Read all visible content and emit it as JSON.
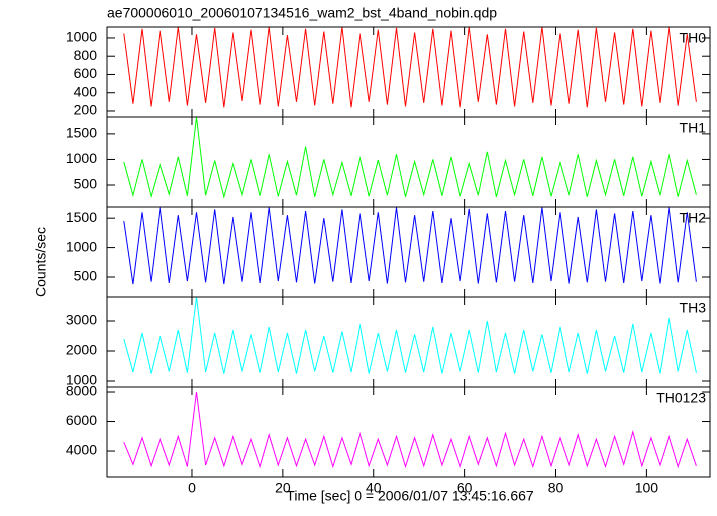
{
  "chart_data": [
    {
      "type": "line",
      "title": "ae700006010_20060107134516_wam2_bst_4band_nobin.qdp",
      "x": [
        -15,
        -13,
        -11,
        -9,
        -7,
        -5,
        -3,
        -1,
        1,
        3,
        5,
        7,
        9,
        11,
        13,
        15,
        17,
        19,
        21,
        23,
        25,
        27,
        29,
        31,
        33,
        35,
        37,
        39,
        41,
        43,
        45,
        47,
        49,
        51,
        53,
        55,
        57,
        59,
        61,
        63,
        65,
        67,
        69,
        71,
        73,
        75,
        77,
        79,
        81,
        83,
        85,
        87,
        89,
        91,
        93,
        95,
        97,
        99,
        101,
        103,
        105,
        107,
        109,
        111
      ],
      "series": [
        {
          "name": "TH0",
          "color": "#ff0000",
          "values": [
            1050,
            280,
            1100,
            250,
            1080,
            300,
            1120,
            260,
            1040,
            290,
            1110,
            240,
            1060,
            310,
            1090,
            270,
            1120,
            250,
            1030,
            300,
            1100,
            260,
            1070,
            280,
            1120,
            240,
            1050,
            300,
            1090,
            270,
            1110,
            250,
            1060,
            290,
            1100,
            260,
            1080,
            240,
            1120,
            300,
            1040,
            270,
            1100,
            250,
            1070,
            290,
            1120,
            260,
            1050,
            280,
            1090,
            240,
            1110,
            300,
            1060,
            270,
            1100,
            250,
            1080,
            290,
            1120,
            260,
            1040,
            300
          ]
        }
      ],
      "xlim": [
        -18.7,
        114
      ],
      "xticks": [
        0,
        20,
        40,
        60,
        80,
        100
      ],
      "ylim": [
        134,
        1120
      ],
      "yticks": [
        200,
        400,
        600,
        800,
        1000
      ]
    },
    {
      "type": "line",
      "x": [
        -15,
        -13,
        -11,
        -9,
        -7,
        -5,
        -3,
        -1,
        1,
        3,
        5,
        7,
        9,
        11,
        13,
        15,
        17,
        19,
        21,
        23,
        25,
        27,
        29,
        31,
        33,
        35,
        37,
        39,
        41,
        43,
        45,
        47,
        49,
        51,
        53,
        55,
        57,
        59,
        61,
        63,
        65,
        67,
        69,
        71,
        73,
        75,
        77,
        79,
        81,
        83,
        85,
        87,
        89,
        91,
        93,
        95,
        97,
        99,
        101,
        103,
        105,
        107,
        109,
        111
      ],
      "series": [
        {
          "name": "TH1",
          "color": "#00ff00",
          "values": [
            950,
            300,
            1000,
            280,
            900,
            320,
            1050,
            290,
            1830,
            300,
            980,
            270,
            920,
            310,
            1000,
            290,
            1100,
            280,
            960,
            300,
            1250,
            270,
            1000,
            310,
            940,
            290,
            1050,
            280,
            990,
            300,
            1100,
            270,
            960,
            310,
            1000,
            290,
            1050,
            280,
            920,
            300,
            1150,
            270,
            980,
            310,
            1000,
            290,
            1050,
            280,
            940,
            300,
            1100,
            270,
            980,
            310,
            1000,
            290,
            1050,
            280,
            960,
            300,
            1100,
            270,
            980,
            310
          ]
        }
      ],
      "xlim": [
        -18.7,
        114
      ],
      "xticks": [
        0,
        20,
        40,
        60,
        80,
        100
      ],
      "ylim": [
        70,
        1830
      ],
      "yticks": [
        500,
        1000,
        1500
      ]
    },
    {
      "type": "line",
      "y_label": "Counts/sec",
      "x": [
        -15,
        -13,
        -11,
        -9,
        -7,
        -5,
        -3,
        -1,
        1,
        3,
        5,
        7,
        9,
        11,
        13,
        15,
        17,
        19,
        21,
        23,
        25,
        27,
        29,
        31,
        33,
        35,
        37,
        39,
        41,
        43,
        45,
        47,
        49,
        51,
        53,
        55,
        57,
        59,
        61,
        63,
        65,
        67,
        69,
        71,
        73,
        75,
        77,
        79,
        81,
        83,
        85,
        87,
        89,
        91,
        93,
        95,
        97,
        99,
        101,
        103,
        105,
        107,
        109,
        111
      ],
      "series": [
        {
          "name": "TH2",
          "color": "#0000ff",
          "values": [
            1450,
            380,
            1600,
            420,
            1680,
            400,
            1550,
            430,
            1600,
            410,
            1650,
            380,
            1520,
            420,
            1600,
            400,
            1680,
            430,
            1550,
            410,
            1620,
            390,
            1500,
            420,
            1650,
            400,
            1580,
            430,
            1600,
            390,
            1680,
            410,
            1550,
            420,
            1620,
            400,
            1500,
            430,
            1660,
            390,
            1580,
            410,
            1620,
            420,
            1550,
            400,
            1680,
            430,
            1600,
            390,
            1520,
            410,
            1650,
            420,
            1580,
            400,
            1620,
            430,
            1550,
            390,
            1680,
            410,
            1600,
            420
          ]
        }
      ],
      "xlim": [
        -18.7,
        114
      ],
      "xticks": [
        0,
        20,
        40,
        60,
        80,
        100
      ],
      "ylim": [
        160,
        1690
      ],
      "yticks": [
        500,
        1000,
        1500
      ]
    },
    {
      "type": "line",
      "x": [
        -15,
        -13,
        -11,
        -9,
        -7,
        -5,
        -3,
        -1,
        1,
        3,
        5,
        7,
        9,
        11,
        13,
        15,
        17,
        19,
        21,
        23,
        25,
        27,
        29,
        31,
        33,
        35,
        37,
        39,
        41,
        43,
        45,
        47,
        49,
        51,
        53,
        55,
        57,
        59,
        61,
        63,
        65,
        67,
        69,
        71,
        73,
        75,
        77,
        79,
        81,
        83,
        85,
        87,
        89,
        91,
        93,
        95,
        97,
        99,
        101,
        103,
        105,
        107,
        109,
        111
      ],
      "series": [
        {
          "name": "TH3",
          "color": "#00ffff",
          "values": [
            2400,
            1300,
            2600,
            1250,
            2500,
            1320,
            2700,
            1280,
            3800,
            1300,
            2600,
            1250,
            2700,
            1320,
            2550,
            1280,
            2800,
            1300,
            2600,
            1250,
            2700,
            1320,
            2500,
            1280,
            2650,
            1300,
            2900,
            1250,
            2600,
            1320,
            2700,
            1280,
            2550,
            1300,
            2800,
            1250,
            2600,
            1320,
            2700,
            1280,
            3000,
            1300,
            2600,
            1250,
            2700,
            1320,
            2550,
            1280,
            2800,
            1300,
            2600,
            1250,
            2700,
            1320,
            2500,
            1280,
            2900,
            1300,
            2600,
            1250,
            3100,
            1320,
            2700,
            1280
          ]
        }
      ],
      "xlim": [
        -18.7,
        114
      ],
      "xticks": [
        0,
        20,
        40,
        60,
        80,
        100
      ],
      "ylim": [
        800,
        3800
      ],
      "yticks": [
        1000,
        2000,
        3000
      ]
    },
    {
      "type": "line",
      "x_label": "Time [sec] 0 = 2006/01/07 13:45:16.667",
      "x": [
        -15,
        -13,
        -11,
        -9,
        -7,
        -5,
        -3,
        -1,
        1,
        3,
        5,
        7,
        9,
        11,
        13,
        15,
        17,
        19,
        21,
        23,
        25,
        27,
        29,
        31,
        33,
        35,
        37,
        39,
        41,
        43,
        45,
        47,
        49,
        51,
        53,
        55,
        57,
        59,
        61,
        63,
        65,
        67,
        69,
        71,
        73,
        75,
        77,
        79,
        81,
        83,
        85,
        87,
        89,
        91,
        93,
        95,
        97,
        99,
        101,
        103,
        105,
        107,
        109,
        111
      ],
      "series": [
        {
          "name": "TH0123",
          "color": "#ff00ff",
          "values": [
            4600,
            3100,
            4900,
            3000,
            4800,
            3050,
            5000,
            2950,
            8000,
            3050,
            4900,
            3000,
            5000,
            3100,
            4800,
            2950,
            5100,
            3050,
            4900,
            3000,
            4800,
            3050,
            5000,
            2950,
            4900,
            3100,
            5200,
            3000,
            4800,
            3050,
            5000,
            2950,
            4900,
            3000,
            5100,
            3050,
            4800,
            2950,
            5000,
            3100,
            4900,
            3000,
            5200,
            3050,
            4800,
            2950,
            5000,
            3000,
            4900,
            3050,
            5100,
            3000,
            4800,
            2950,
            5000,
            3100,
            5300,
            3000,
            4900,
            3050,
            5000,
            2950,
            4800,
            3000
          ]
        }
      ],
      "xlim": [
        -18.7,
        114
      ],
      "xticks": [
        0,
        20,
        40,
        60,
        80,
        100
      ],
      "ylim": [
        2240,
        8340
      ],
      "yticks": [
        4000,
        6000,
        8000
      ]
    }
  ]
}
